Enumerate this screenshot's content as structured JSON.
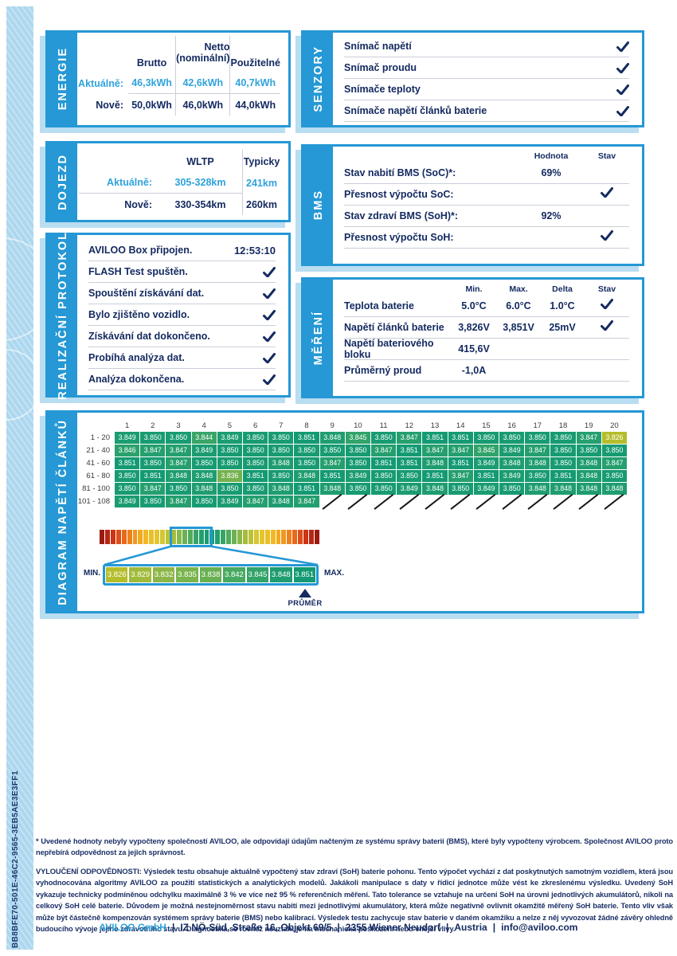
{
  "page": {
    "id_code": "BB8BFE70-501E-46C2-9565-3EB5AE3E3FF1"
  },
  "colors": {
    "accent": "#2598D5",
    "navy": "#142A60",
    "value_blue": "#2FA3DC",
    "cell_teal": "#149A73",
    "cell_yellow": "#B5BD2B",
    "shadow_blue": "#B9DDF1"
  },
  "sections": {
    "energie": {
      "title": "ENERGIE",
      "headers": {
        "col0": "Brutto",
        "col1_line1": "Netto",
        "col1_line2": "(nominální)",
        "col2": "Použitelné"
      },
      "rows": [
        {
          "label": "Aktuálně:",
          "values": [
            "46,3kWh",
            "42,6kWh",
            "40,7kWh"
          ]
        },
        {
          "label": "Nově:",
          "values": [
            "50,0kWh",
            "46,0kWh",
            "44,0kWh"
          ]
        }
      ]
    },
    "senzory": {
      "title": "SENZORY",
      "items": [
        {
          "label": "Snímač napětí",
          "check": true
        },
        {
          "label": "Snímač proudu",
          "check": true
        },
        {
          "label": "Snímače teploty",
          "check": true
        },
        {
          "label": "Snímače napětí článků baterie",
          "check": true
        }
      ]
    },
    "dojezd": {
      "title": "DOJEZD",
      "headers": [
        "WLTP",
        "Typicky"
      ],
      "rows": [
        {
          "label": "Aktuálně:",
          "values": [
            "305-328km",
            "241km"
          ]
        },
        {
          "label": "Nově:",
          "values": [
            "330-354km",
            "260km"
          ]
        }
      ]
    },
    "bms": {
      "title": "BMS",
      "headers": [
        "Hodnota",
        "Stav"
      ],
      "rows": [
        {
          "label": "Stav nabití BMS (SoC)*:",
          "value": "69%",
          "check": false
        },
        {
          "label": "Přesnost výpočtu SoC:",
          "value": "",
          "check": true
        },
        {
          "label": "Stav zdraví BMS (SoH)*:",
          "value": "92%",
          "check": false
        },
        {
          "label": "Přesnost výpočtu SoH:",
          "value": "",
          "check": true
        }
      ]
    },
    "protokol": {
      "title": "REALIZAČNÍ PROTOKOL",
      "rows": [
        {
          "label": "AVILOO Box připojen.",
          "value": "12:53:10",
          "check": false
        },
        {
          "label": "FLASH Test spuštěn.",
          "value": "",
          "check": true
        },
        {
          "label": "Spouštění získávání dat.",
          "value": "",
          "check": true
        },
        {
          "label": "Bylo zjištěno vozidlo.",
          "value": "",
          "check": true
        },
        {
          "label": "Získávání dat dokončeno.",
          "value": "",
          "check": true
        },
        {
          "label": "Probíhá analýza dat.",
          "value": "",
          "check": true
        },
        {
          "label": "Analýza dokončena.",
          "value": "",
          "check": true
        }
      ]
    },
    "mereni": {
      "title": "MĚŘENÍ",
      "headers": [
        "Min.",
        "Max.",
        "Delta",
        "Stav"
      ],
      "rows": [
        {
          "label": "Teplota baterie",
          "min": "5.0°C",
          "max": "6.0°C",
          "delta": "1.0°C",
          "check": true
        },
        {
          "label": "Napětí článků baterie",
          "min": "3,826V",
          "max": "3,851V",
          "delta": "25mV",
          "check": true
        },
        {
          "label": "Napětí bateriového bloku",
          "min": "415,6V",
          "max": "",
          "delta": "",
          "check": false
        },
        {
          "label": "Průměrný proud",
          "min": "-1,0A",
          "max": "",
          "delta": "",
          "check": false
        }
      ]
    },
    "diagram": {
      "title": "DIAGRAM NAPĚTÍ ČLÁNKŮ",
      "columns": [
        "1",
        "2",
        "3",
        "4",
        "5",
        "6",
        "7",
        "8",
        "9",
        "10",
        "11",
        "12",
        "13",
        "14",
        "15",
        "16",
        "17",
        "18",
        "19",
        "20"
      ],
      "rows": [
        {
          "label": "1 - 20",
          "values": [
            "3.849",
            "3.850",
            "3.850",
            "3.844",
            "3.849",
            "3.850",
            "3.850",
            "3.851",
            "3.848",
            "3.845",
            "3.850",
            "3.847",
            "3.851",
            "3.851",
            "3.850",
            "3.850",
            "3.850",
            "3.850",
            "3.847",
            "3.826"
          ]
        },
        {
          "label": "21 - 40",
          "values": [
            "3.846",
            "3.847",
            "3.847",
            "3.849",
            "3.850",
            "3.850",
            "3.850",
            "3.850",
            "3.850",
            "3.850",
            "3.847",
            "3.851",
            "3.847",
            "3.847",
            "3.845",
            "3.849",
            "3.847",
            "3.850",
            "3.850",
            "3.850"
          ]
        },
        {
          "label": "41 - 60",
          "values": [
            "3.851",
            "3.850",
            "3.847",
            "3.850",
            "3.850",
            "3.850",
            "3.848",
            "3.850",
            "3.847",
            "3.850",
            "3.851",
            "3.851",
            "3.848",
            "3.851",
            "3.849",
            "3.848",
            "3.848",
            "3.850",
            "3.848",
            "3.847"
          ]
        },
        {
          "label": "61 - 80",
          "values": [
            "3.850",
            "3.851",
            "3.848",
            "3.848",
            "3.836",
            "3.851",
            "3.850",
            "3.848",
            "3.851",
            "3.849",
            "3.850",
            "3.850",
            "3.851",
            "3.847",
            "3.851",
            "3.849",
            "3.850",
            "3.851",
            "3.848",
            "3.850"
          ]
        },
        {
          "label": "81 - 100",
          "values": [
            "3.850",
            "3.847",
            "3.850",
            "3.848",
            "3.850",
            "3.850",
            "3.848",
            "3.851",
            "3.848",
            "3.850",
            "3.850",
            "3.849",
            "3.848",
            "3.850",
            "3.849",
            "3.850",
            "3.848",
            "3.848",
            "3.848",
            "3.848"
          ]
        },
        {
          "label": "101 - 108",
          "values": [
            "3.849",
            "3.850",
            "3.847",
            "3.850",
            "3.849",
            "3.847",
            "3.848",
            "3.847",
            null,
            null,
            null,
            null,
            null,
            null,
            null,
            null,
            null,
            null,
            null,
            null
          ]
        }
      ],
      "min_label": "MIN.",
      "max_label": "MAX.",
      "avg_label": "PRŮMĚR",
      "scale_cells": [
        "3.826",
        "3.829",
        "3.832",
        "3.835",
        "3.838",
        "3.842",
        "3.845",
        "3.848",
        "3.851"
      ],
      "range": [
        3.826,
        3.851
      ]
    }
  },
  "footnotes": {
    "note1": "* Uvedené hodnoty nebyly vypočteny společností AVILOO, ale odpovídají údajům načteným ze systému správy baterií (BMS), které byly vypočteny výrobcem. Společnost AVILOO proto nepřebírá odpovědnost za jejich správnost.",
    "disclaimer_title": "VYLOUČENÍ ODPOVĚDNOSTI:",
    "disclaimer_body": "Výsledek testu obsahuje aktuálně vypočtený stav zdraví (SoH) baterie pohonu. Tento výpočet vychází z dat poskytnutých samotným vozidlem, která jsou vyhodnocována algoritmy AVILOO za použití statistických a analytických modelů. Jakákoli manipulace s daty v řídicí jednotce může vést ke zkreslenému výsledku. Uvedený SoH vykazuje technicky podmíněnou odchylku maximálně 3 % ve více než 95 % referenčních měření. Tato tolerance se vztahuje na určení SoH na úrovni jednotlivých akumulátorů, nikoli na celkový SoH celé baterie. Důvodem je možná nestejnoměrnost stavu nabití mezi jednotlivými akumulátory, která může negativně ovlivnit okamžitě měřený SoH baterie. Tento vliv však může být částečně kompenzován systémem správy baterie (BMS) nebo kalibrací. Výsledek testu zachycuje stav baterie v daném okamžiku a nelze z něj vyvozovat žádné závěry ohledně budoucího vývoje jejího zdravotního stavu. Diagnostika se rovněž nevztahuje na mechanická poškození nebo vnější vlivy."
  },
  "footer": {
    "company": "AVILOO GmbH",
    "items": [
      "IZ NÖ-Süd, Straße 16, Objekt 69/5",
      "2355 Wiener Neudorf",
      "Austria",
      "info@aviloo.com"
    ],
    "separator": "|"
  }
}
